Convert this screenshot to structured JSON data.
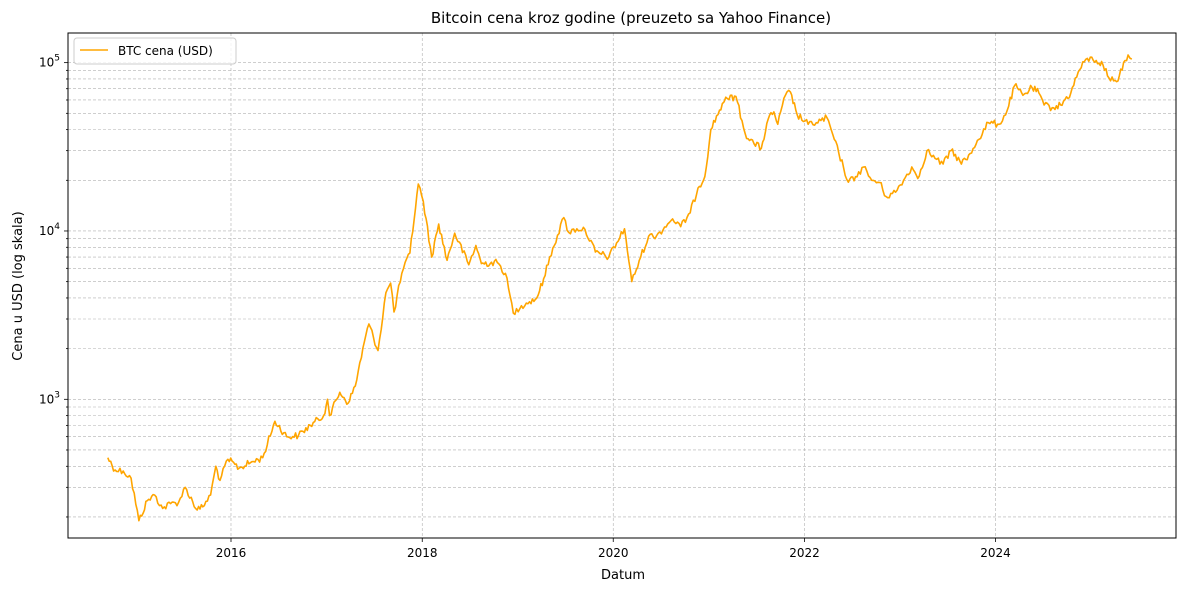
{
  "chart_data": {
    "type": "line",
    "title": "Bitcoin cena kroz godine (preuzeto sa Yahoo Finance)",
    "xlabel": "Datum",
    "ylabel": "Cena u USD (log skala)",
    "y_scale": "log",
    "ylim": [
      150,
      150000
    ],
    "xlim": [
      "2014-04-18",
      "2025-11-21"
    ],
    "x_ticks": [
      "2016",
      "2018",
      "2020",
      "2022",
      "2024"
    ],
    "y_ticks": [
      {
        "base": "10",
        "exp": "3"
      },
      {
        "base": "10",
        "exp": "4"
      },
      {
        "base": "10",
        "exp": "5"
      }
    ],
    "grid": true,
    "legend_position": "top-left",
    "series": [
      {
        "name": "BTC cena (USD)",
        "color": "#FFA500",
        "x": [
          "2014-09-17",
          "2014-10-15",
          "2014-11-15",
          "2014-12-15",
          "2015-01-14",
          "2015-02-15",
          "2015-03-15",
          "2015-04-15",
          "2015-05-15",
          "2015-06-15",
          "2015-07-10",
          "2015-08-25",
          "2015-09-15",
          "2015-10-15",
          "2015-11-04",
          "2015-11-20",
          "2015-12-20",
          "2016-02-01",
          "2016-03-15",
          "2016-05-01",
          "2016-06-17",
          "2016-08-01",
          "2016-09-15",
          "2016-10-30",
          "2016-12-20",
          "2017-01-04",
          "2017-01-12",
          "2017-02-20",
          "2017-03-24",
          "2017-04-20",
          "2017-05-25",
          "2017-06-11",
          "2017-07-16",
          "2017-08-15",
          "2017-09-02",
          "2017-09-15",
          "2017-10-15",
          "2017-11-15",
          "2017-12-17",
          "2018-01-05",
          "2018-02-06",
          "2018-03-05",
          "2018-04-06",
          "2018-05-05",
          "2018-06-28",
          "2018-07-25",
          "2018-08-15",
          "2018-10-15",
          "2018-11-15",
          "2018-12-15",
          "2019-01-15",
          "2019-02-15",
          "2019-03-15",
          "2019-04-10",
          "2019-05-15",
          "2019-06-26",
          "2019-07-15",
          "2019-08-15",
          "2019-09-15",
          "2019-10-25",
          "2019-12-15",
          "2020-02-13",
          "2020-03-12",
          "2020-04-15",
          "2020-05-15",
          "2020-06-15",
          "2020-07-27",
          "2020-08-15",
          "2020-09-15",
          "2020-10-21",
          "2020-11-20",
          "2020-12-16",
          "2021-01-08",
          "2021-02-21",
          "2021-03-13",
          "2021-04-14",
          "2021-05-19",
          "2021-06-22",
          "2021-07-20",
          "2021-08-15",
          "2021-09-06",
          "2021-09-21",
          "2021-10-20",
          "2021-11-08",
          "2021-12-04",
          "2022-01-15",
          "2022-02-15",
          "2022-03-28",
          "2022-05-12",
          "2022-06-18",
          "2022-07-15",
          "2022-08-15",
          "2022-09-15",
          "2022-10-15",
          "2022-11-09",
          "2022-12-15",
          "2023-01-15",
          "2023-02-15",
          "2023-03-10",
          "2023-04-14",
          "2023-05-15",
          "2023-06-15",
          "2023-07-15",
          "2023-08-18",
          "2023-09-15",
          "2023-10-24",
          "2023-12-05",
          "2024-01-15",
          "2024-02-15",
          "2024-03-14",
          "2024-04-15",
          "2024-05-20",
          "2024-06-15",
          "2024-07-05",
          "2024-08-05",
          "2024-09-06",
          "2024-10-15",
          "2024-11-12",
          "2024-12-17",
          "2025-01-20",
          "2025-02-15",
          "2025-03-10",
          "2025-04-08",
          "2025-05-10",
          "2025-05-22",
          "2025-06-05"
        ],
        "y": [
          450,
          380,
          375,
          340,
          190,
          250,
          270,
          225,
          240,
          245,
          300,
          220,
          230,
          270,
          400,
          330,
          440,
          390,
          420,
          450,
          740,
          600,
          610,
          700,
          800,
          1000,
          800,
          1100,
          950,
          1200,
          2200,
          2800,
          1950,
          4300,
          4900,
          3300,
          5600,
          7400,
          19000,
          15000,
          7000,
          11000,
          6700,
          9700,
          6300,
          8200,
          6400,
          6500,
          5600,
          3250,
          3600,
          3800,
          4000,
          5200,
          7900,
          12000,
          9800,
          10300,
          10200,
          7500,
          7000,
          10300,
          5000,
          7000,
          9300,
          9400,
          11000,
          11800,
          10600,
          12800,
          18000,
          21000,
          40000,
          57000,
          61000,
          63000,
          38000,
          33000,
          31000,
          46000,
          51000,
          43000,
          64000,
          67000,
          49000,
          43000,
          44000,
          47000,
          29000,
          19500,
          21000,
          24000,
          20000,
          19400,
          16000,
          17000,
          20000,
          24000,
          20500,
          30000,
          27000,
          25000,
          30000,
          26000,
          26500,
          34500,
          44000,
          43000,
          52000,
          73000,
          64000,
          71000,
          66000,
          56000,
          54000,
          56000,
          66000,
          88000,
          106000,
          103000,
          97000,
          81000,
          77000,
          103000,
          111000,
          105000
        ]
      }
    ]
  }
}
